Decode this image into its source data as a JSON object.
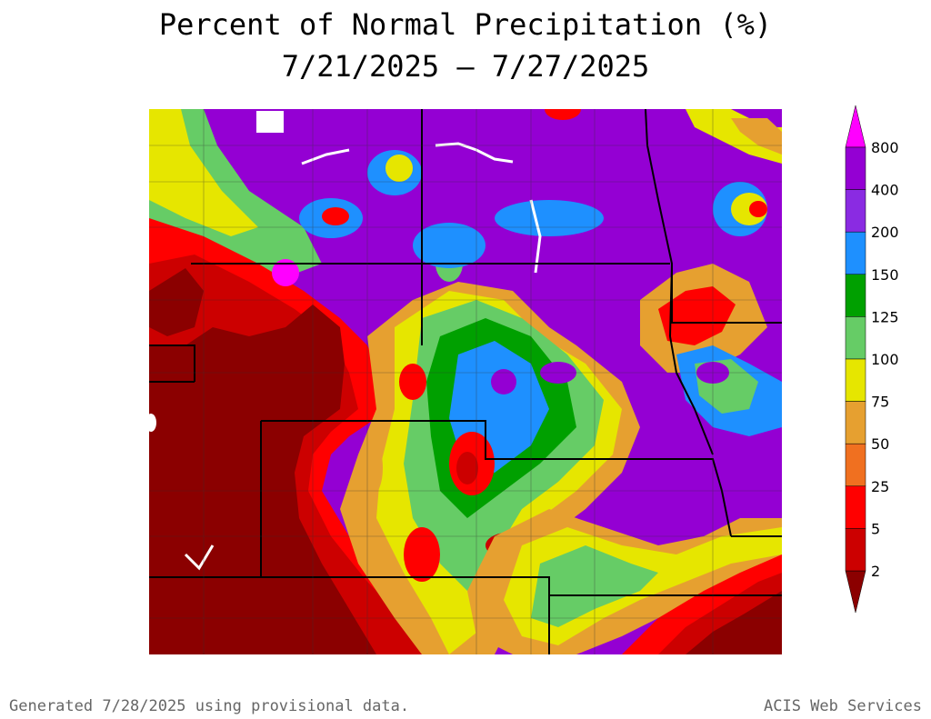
{
  "map": {
    "title": "Percent of Normal Precipitation (%)",
    "date_range": "7/21/2025 – 7/27/2025"
  },
  "legend": {
    "labels": [
      "800",
      "400",
      "200",
      "150",
      "125",
      "100",
      "75",
      "50",
      "25",
      "5",
      "2"
    ],
    "colors": {
      "gt800": "#ff00ff",
      "400_800": "#9400d3",
      "200_400": "#8a2be2",
      "150_200": "#1e90ff",
      "125_150": "#00a000",
      "100_125": "#66cc66",
      "75_100": "#e6e600",
      "50_75": "#e6a030",
      "25_50": "#f07020",
      "5_25": "#ff0000",
      "2_5": "#cc0000",
      "lt2": "#8b0000"
    }
  },
  "footer": {
    "generated": "Generated 7/28/2025 using provisional data.",
    "source": "ACIS Web Services"
  }
}
